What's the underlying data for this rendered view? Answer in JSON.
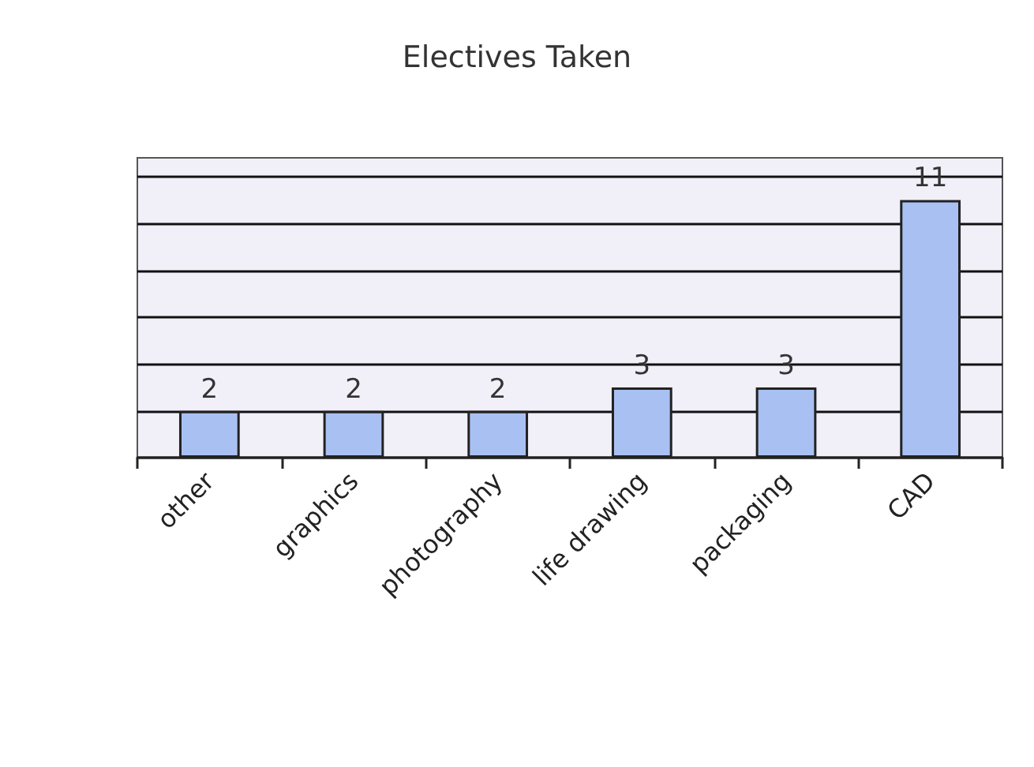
{
  "chart_data": {
    "type": "bar",
    "title": "Electives Taken",
    "categories": [
      "other",
      "graphics",
      "photography",
      "life drawing",
      "packaging",
      "CAD"
    ],
    "values": [
      2,
      2,
      2,
      3,
      3,
      11
    ],
    "color": "#a9c1f2",
    "ylim": [
      0,
      12.8
    ],
    "yticks": [
      {
        "value": 0,
        "label": null
      },
      {
        "value": 2,
        "label": null
      },
      {
        "value": 4,
        "label": null
      },
      {
        "value": 6,
        "label": null
      },
      {
        "value": 8,
        "label": null
      },
      {
        "value": 10,
        "label": null
      },
      {
        "value": 12,
        "label": null
      }
    ],
    "grid": "y",
    "data_labels": true,
    "tick_labels": "x"
  }
}
